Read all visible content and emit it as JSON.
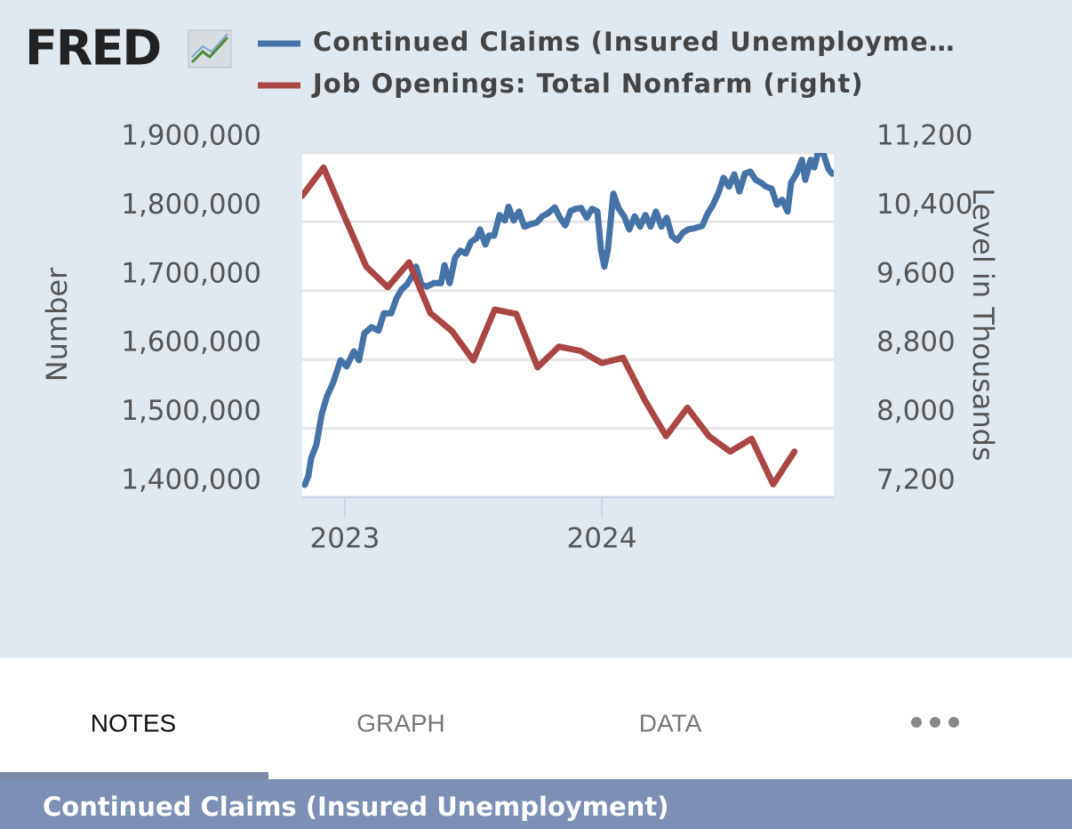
{
  "logo": "FRED",
  "tabs": [
    "NOTES",
    "GRAPH",
    "DATA"
  ],
  "section_title": "Continued Claims (Insured Unemployment)",
  "chart_data": {
    "type": "line",
    "ylabel": "Number",
    "y2label": "Level in Thousands",
    "xlim": [
      2022.834,
      2024.903
    ],
    "xticks": [
      {
        "value": 2023,
        "label": "2023"
      },
      {
        "value": 2024,
        "label": "2024"
      }
    ],
    "ylim": [
      1400000,
      1900000
    ],
    "yticks": [
      {
        "value": 1400000,
        "label": "1,400,000"
      },
      {
        "value": 1500000,
        "label": "1,500,000"
      },
      {
        "value": 1600000,
        "label": "1,600,000"
      },
      {
        "value": 1700000,
        "label": "1,700,000"
      },
      {
        "value": 1800000,
        "label": "1,800,000"
      },
      {
        "value": 1900000,
        "label": "1,900,000"
      }
    ],
    "y2lim": [
      7200,
      11200
    ],
    "y2ticks": [
      {
        "value": 7200,
        "label": "7,200"
      },
      {
        "value": 8000,
        "label": "8,000"
      },
      {
        "value": 8800,
        "label": "8,800"
      },
      {
        "value": 9600,
        "label": "9,600"
      },
      {
        "value": 10400,
        "label": "10,400"
      },
      {
        "value": 11200,
        "label": "11,200"
      }
    ],
    "grid": true,
    "series": [
      {
        "name": "Continued Claims (Insured Unemployme…",
        "color": "#4572a7",
        "x": [
          2022.844,
          2022.858,
          2022.869,
          2022.889,
          2022.91,
          2022.931,
          2022.955,
          2022.983,
          2023.007,
          2023.035,
          2023.055,
          2023.076,
          2023.104,
          2023.131,
          2023.152,
          2023.18,
          2023.201,
          2023.221,
          2023.242,
          2023.263,
          2023.277,
          2023.298,
          2023.318,
          2023.346,
          2023.374,
          2023.388,
          2023.408,
          2023.429,
          2023.45,
          2023.471,
          2023.491,
          2023.512,
          2023.526,
          2023.547,
          2023.561,
          2023.581,
          2023.602,
          2023.623,
          2023.637,
          2023.657,
          2023.678,
          2023.699,
          2023.727,
          2023.747,
          2023.768,
          2023.789,
          2023.817,
          2023.837,
          2023.858,
          2023.879,
          2023.9,
          2023.92,
          2023.941,
          2023.962,
          2023.983,
          2023.997,
          2024.01,
          2024.024,
          2024.045,
          2024.066,
          2024.087,
          2024.107,
          2024.128,
          2024.149,
          2024.17,
          2024.19,
          2024.211,
          2024.232,
          2024.253,
          2024.273,
          2024.294,
          2024.315,
          2024.336,
          2024.363,
          2024.391,
          2024.412,
          2024.433,
          2024.453,
          2024.474,
          2024.495,
          2024.516,
          2024.536,
          2024.557,
          2024.578,
          2024.599,
          2024.619,
          2024.64,
          2024.661,
          2024.682,
          2024.702,
          2024.723,
          2024.737,
          2024.758,
          2024.779,
          2024.792,
          2024.813,
          2024.827,
          2024.841,
          2024.862,
          2024.882,
          2024.896
        ],
        "values": [
          1418000,
          1431000,
          1457000,
          1476000,
          1521000,
          1547000,
          1567000,
          1599000,
          1590000,
          1612000,
          1599000,
          1638000,
          1647000,
          1642000,
          1667000,
          1667000,
          1689000,
          1702000,
          1709000,
          1722000,
          1735000,
          1709000,
          1706000,
          1711000,
          1711000,
          1737000,
          1711000,
          1748000,
          1758000,
          1754000,
          1771000,
          1776000,
          1789000,
          1767000,
          1780000,
          1780000,
          1810000,
          1802000,
          1822000,
          1802000,
          1815000,
          1793000,
          1797000,
          1799000,
          1808000,
          1812000,
          1821000,
          1806000,
          1795000,
          1816000,
          1819000,
          1820000,
          1806000,
          1819000,
          1815000,
          1760000,
          1735000,
          1760000,
          1841000,
          1819000,
          1808000,
          1789000,
          1808000,
          1793000,
          1810000,
          1793000,
          1815000,
          1793000,
          1806000,
          1779000,
          1773000,
          1784000,
          1789000,
          1791000,
          1794000,
          1812000,
          1825000,
          1841000,
          1864000,
          1851000,
          1869000,
          1844000,
          1870000,
          1873000,
          1861000,
          1857000,
          1851000,
          1848000,
          1825000,
          1832000,
          1815000,
          1857000,
          1870000,
          1890000,
          1861000,
          1890000,
          1879000,
          1900000,
          1900000,
          1877000,
          1870000
        ]
      },
      {
        "name": "Job Openings: Total Nonfarm (right)",
        "color": "#aa4643",
        "axis": "y2",
        "x": [
          2022.833,
          2022.917,
          2023.0,
          2023.083,
          2023.167,
          2023.25,
          2023.333,
          2023.417,
          2023.5,
          2023.583,
          2023.667,
          2023.75,
          2023.833,
          2023.917,
          2024.0,
          2024.083,
          2024.167,
          2024.25,
          2024.333,
          2024.417,
          2024.5,
          2024.583,
          2024.667,
          2024.75
        ],
        "values": [
          10700,
          11030,
          10450,
          9880,
          9640,
          9930,
          9340,
          9130,
          8790,
          9380,
          9330,
          8710,
          8950,
          8900,
          8760,
          8820,
          8330,
          7910,
          8240,
          7910,
          7730,
          7880,
          7350,
          7730
        ]
      }
    ]
  }
}
